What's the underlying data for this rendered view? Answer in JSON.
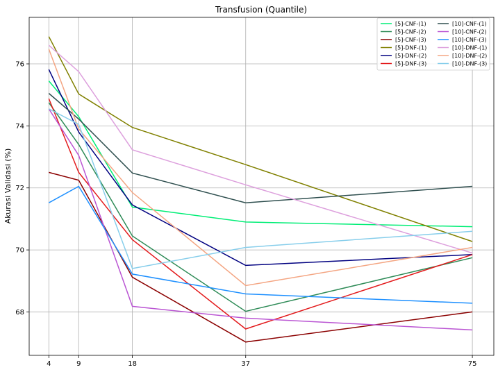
{
  "chart_data": {
    "type": "line",
    "title": "Transfusion (Quantile)",
    "xlabel": "",
    "ylabel": "Akurasi Validasi (%)",
    "x": [
      4,
      9,
      18,
      37,
      75
    ],
    "x_ticks": [
      4,
      9,
      18,
      37,
      75
    ],
    "y_ticks": [
      68,
      70,
      72,
      74,
      76
    ],
    "xlim": [
      0.7,
      78.6
    ],
    "ylim": [
      66.6,
      77.5
    ],
    "grid": true,
    "legend_position": "top-right",
    "legend_columns": 2,
    "series": [
      {
        "name": "[5]-CNF-(1)",
        "color": "#00ee76",
        "values": [
          75.45,
          74.3,
          71.38,
          70.9,
          70.75
        ]
      },
      {
        "name": "[5]-CNF-(2)",
        "color": "#2e8b57",
        "values": [
          74.75,
          73.4,
          70.45,
          68.02,
          69.75
        ]
      },
      {
        "name": "[5]-CNF-(3)",
        "color": "#8b0000",
        "values": [
          72.5,
          72.25,
          69.12,
          67.03,
          68.0
        ]
      },
      {
        "name": "[5]-DNF-(1)",
        "color": "#808000",
        "values": [
          76.88,
          75.03,
          73.95,
          72.75,
          70.27
        ]
      },
      {
        "name": "[5]-DNF-(2)",
        "color": "#000080",
        "values": [
          75.82,
          73.8,
          71.45,
          69.5,
          69.85
        ]
      },
      {
        "name": "[5]-DNF-(3)",
        "color": "#e31a1c",
        "values": [
          74.88,
          72.5,
          70.33,
          67.45,
          69.85
        ]
      },
      {
        "name": "[10]-CNF-(1)",
        "color": "#2f4f4f",
        "values": [
          75.05,
          74.22,
          72.48,
          71.52,
          72.05
        ]
      },
      {
        "name": "[10]-CNF-(2)",
        "color": "#ba55d3",
        "values": [
          74.55,
          73.05,
          68.18,
          67.8,
          67.42
        ]
      },
      {
        "name": "[10]-CNF-(3)",
        "color": "#1e90ff",
        "values": [
          71.52,
          72.05,
          69.22,
          68.58,
          68.28
        ]
      },
      {
        "name": "[10]-DNF-(1)",
        "color": "#dda0dd",
        "values": [
          76.6,
          75.75,
          73.23,
          72.1,
          69.9
        ]
      },
      {
        "name": "[10]-DNF-(2)",
        "color": "#f4a582",
        "values": [
          76.48,
          73.9,
          71.85,
          68.85,
          70.08
        ]
      },
      {
        "name": "[10]-DNF-(3)",
        "color": "#87ceeb",
        "values": [
          74.55,
          74.05,
          69.4,
          70.08,
          70.6
        ]
      }
    ]
  }
}
